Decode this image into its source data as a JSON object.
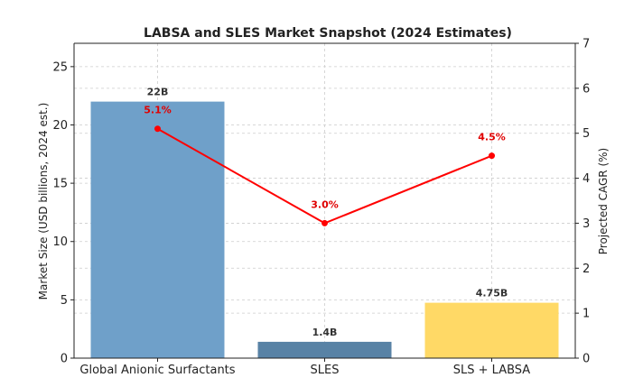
{
  "chart_data": {
    "type": "bar",
    "title": "LABSA and SLES Market Snapshot (2024 Estimates)",
    "categories": [
      "Global Anionic Surfactants",
      "SLES",
      "SLS + LABSA"
    ],
    "bar_series": {
      "values": [
        22,
        1.4,
        4.75
      ],
      "value_labels": [
        "22B",
        "1.4B",
        "4.75B"
      ],
      "colors": [
        "#6fa0c9",
        "#5882a5",
        "#ffd966"
      ]
    },
    "line_series": {
      "values": [
        5.1,
        3.0,
        4.5
      ],
      "value_labels": [
        "5.1%",
        "3.0%",
        "4.5%"
      ],
      "color": "#ff0000"
    },
    "ylabel": "Market Size (USD billions, 2024 est.)",
    "ylim": [
      0,
      27
    ],
    "yticks": [
      0,
      5,
      10,
      15,
      20,
      25
    ],
    "y2label": "Projected CAGR (%)",
    "y2lim": [
      0,
      7
    ],
    "y2ticks": [
      0,
      1,
      2,
      3,
      4,
      5,
      6,
      7
    ],
    "grid": true
  }
}
